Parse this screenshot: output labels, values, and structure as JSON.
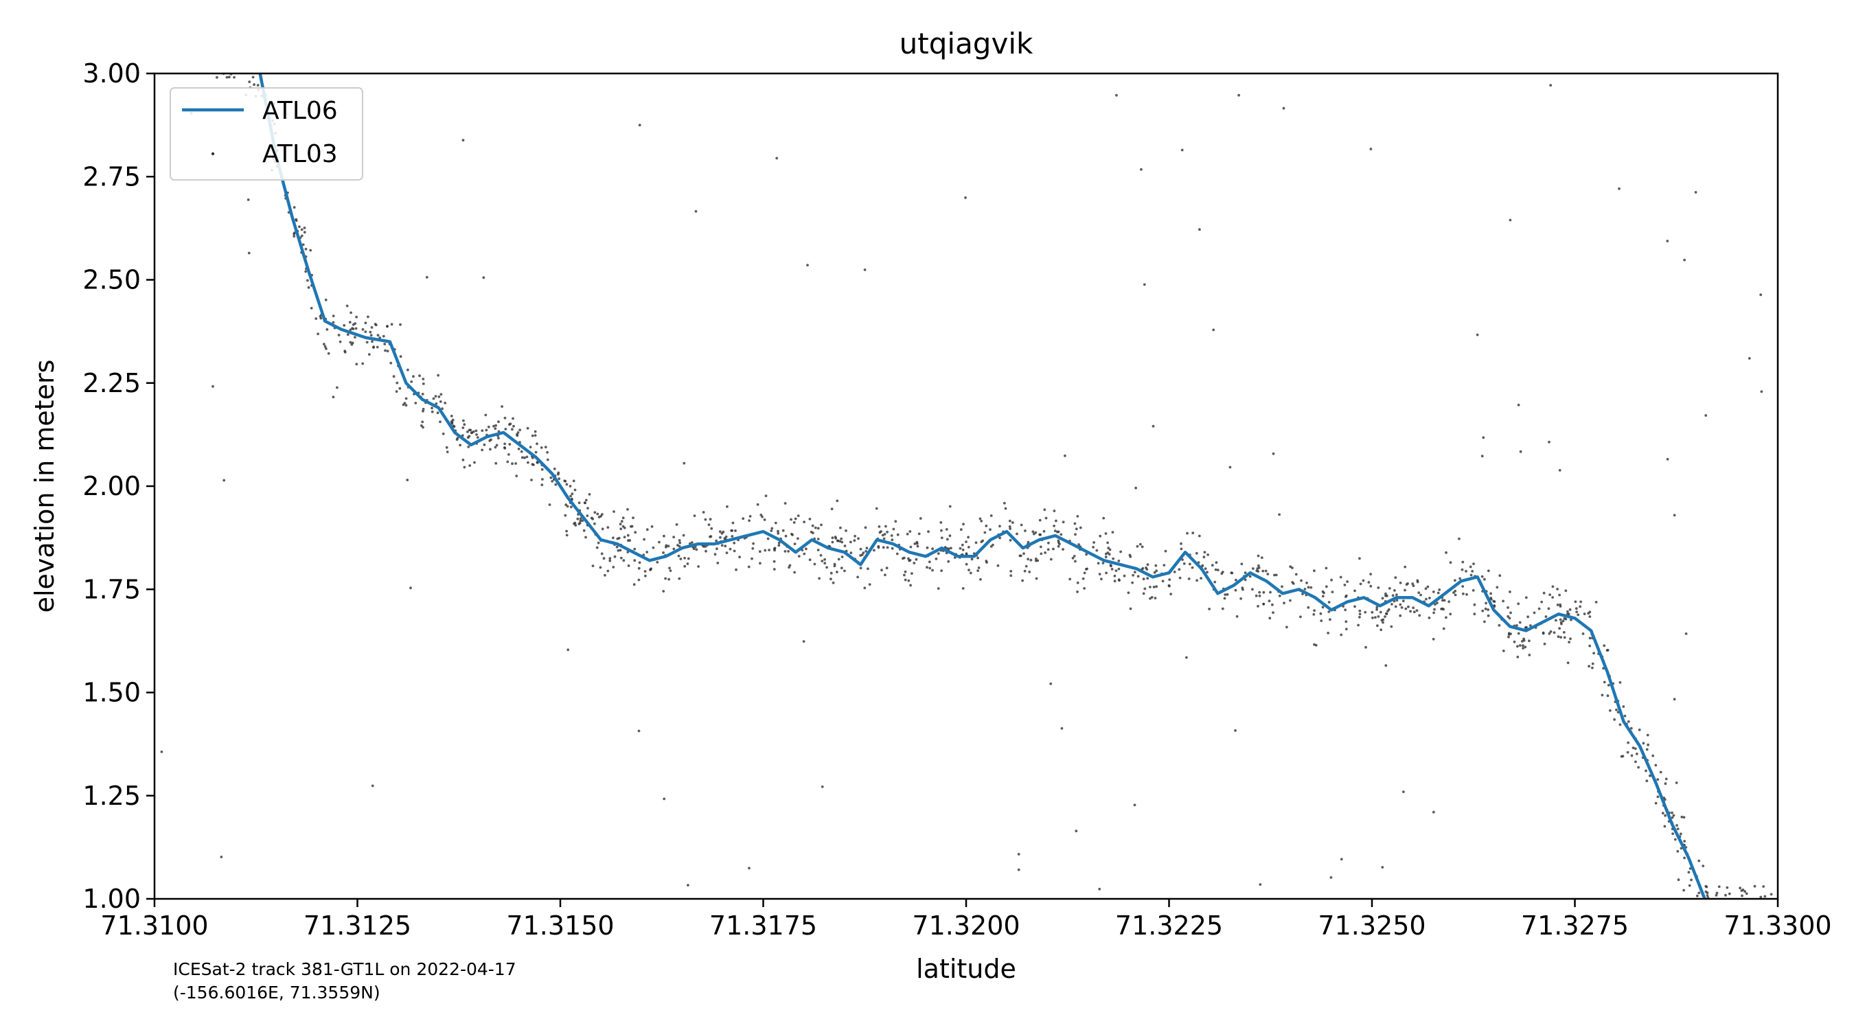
{
  "chart_data": {
    "type": "scatter",
    "title": "utqiagvik",
    "xlabel": "latitude",
    "ylabel": "elevation in meters",
    "xlim": [
      71.31,
      71.33
    ],
    "ylim": [
      1.0,
      3.0
    ],
    "x_ticks": [
      71.31,
      71.3125,
      71.315,
      71.3175,
      71.32,
      71.3225,
      71.325,
      71.3275,
      71.33
    ],
    "x_tick_labels": [
      "71.3100",
      "71.3125",
      "71.3150",
      "71.3175",
      "71.3200",
      "71.3225",
      "71.3250",
      "71.3275",
      "71.3300"
    ],
    "y_ticks": [
      1.0,
      1.25,
      1.5,
      1.75,
      2.0,
      2.25,
      2.5,
      2.75,
      3.0
    ],
    "y_tick_labels": [
      "1.00",
      "1.25",
      "1.50",
      "1.75",
      "2.00",
      "2.25",
      "2.50",
      "2.75",
      "3.00"
    ],
    "legend": {
      "position": "top-left",
      "entries": [
        "ATL06",
        "ATL03"
      ]
    },
    "grid": false,
    "series": [
      {
        "name": "ATL06",
        "kind": "line",
        "color": "#1f77b4",
        "x": [
          71.3113,
          71.3115,
          71.3117,
          71.3119,
          71.3121,
          71.3123,
          71.3126,
          71.3129,
          71.3131,
          71.3133,
          71.3135,
          71.3137,
          71.3139,
          71.3141,
          71.3143,
          71.3145,
          71.3147,
          71.3149,
          71.3151,
          71.3153,
          71.3155,
          71.3157,
          71.3159,
          71.3161,
          71.3163,
          71.3165,
          71.3167,
          71.3169,
          71.3171,
          71.3173,
          71.3175,
          71.3177,
          71.3179,
          71.3181,
          71.3183,
          71.3185,
          71.3187,
          71.3189,
          71.3191,
          71.3193,
          71.3195,
          71.3197,
          71.3199,
          71.3201,
          71.3203,
          71.3205,
          71.3207,
          71.3209,
          71.3211,
          71.3213,
          71.3215,
          71.3217,
          71.3219,
          71.3221,
          71.3223,
          71.3225,
          71.3227,
          71.3229,
          71.3231,
          71.3233,
          71.3235,
          71.3237,
          71.3239,
          71.3241,
          71.3243,
          71.3245,
          71.3247,
          71.3249,
          71.3251,
          71.3253,
          71.3255,
          71.3257,
          71.3259,
          71.3261,
          71.3263,
          71.3265,
          71.3267,
          71.3269,
          71.3271,
          71.3273,
          71.3275,
          71.3277,
          71.3279,
          71.3281,
          71.3283,
          71.3285,
          71.3287,
          71.3289,
          71.3291
        ],
        "y": [
          3.0,
          2.8,
          2.65,
          2.52,
          2.4,
          2.38,
          2.36,
          2.35,
          2.25,
          2.21,
          2.19,
          2.13,
          2.1,
          2.12,
          2.13,
          2.1,
          2.07,
          2.03,
          1.97,
          1.92,
          1.87,
          1.86,
          1.84,
          1.82,
          1.83,
          1.85,
          1.86,
          1.86,
          1.87,
          1.88,
          1.89,
          1.87,
          1.84,
          1.87,
          1.85,
          1.84,
          1.81,
          1.87,
          1.86,
          1.84,
          1.83,
          1.85,
          1.83,
          1.83,
          1.87,
          1.89,
          1.85,
          1.87,
          1.88,
          1.86,
          1.84,
          1.82,
          1.81,
          1.8,
          1.78,
          1.79,
          1.84,
          1.8,
          1.74,
          1.76,
          1.79,
          1.77,
          1.74,
          1.75,
          1.73,
          1.7,
          1.72,
          1.73,
          1.71,
          1.73,
          1.73,
          1.71,
          1.74,
          1.77,
          1.78,
          1.7,
          1.66,
          1.65,
          1.67,
          1.69,
          1.68,
          1.65,
          1.55,
          1.43,
          1.37,
          1.28,
          1.18,
          1.1,
          1.0
        ]
      },
      {
        "name": "ATL03",
        "kind": "scatter",
        "color": "#333333",
        "n_points": 1600,
        "noise_std": 0.07,
        "outlier_fraction": 0.06
      }
    ],
    "annotations": [
      "ICESat-2 track 381-GT1L on 2022-04-17",
      "(-156.6016E, 71.3559N)"
    ]
  }
}
